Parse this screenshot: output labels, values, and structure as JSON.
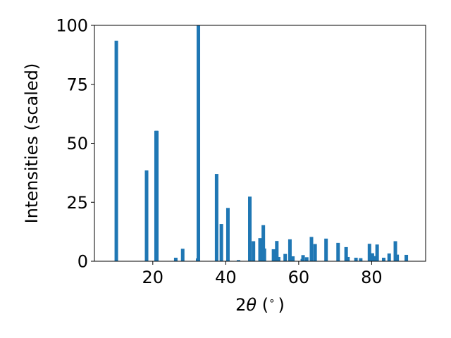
{
  "chart_data": {
    "type": "bar",
    "xlabel": "2θ (°)",
    "xlabel_parts": {
      "base": "2",
      "symbol": "θ",
      "unit": " (",
      "degree": "∘",
      "close": ")"
    },
    "ylabel": "Intensities (scaled)",
    "title": "",
    "xlim": [
      4.0,
      94.8
    ],
    "ylim": [
      0,
      100
    ],
    "xticks": [
      20,
      40,
      60,
      80
    ],
    "yticks": [
      0,
      25,
      50,
      75,
      100
    ],
    "bar_color": "#1f77b4",
    "grid": false,
    "x": [
      10.0,
      18.3,
      20.9,
      21.1,
      26.3,
      28.2,
      32.3,
      32.5,
      37.5,
      38.8,
      40.6,
      43.5,
      46.6,
      47.6,
      49.4,
      50.3,
      50.6,
      53.1,
      54.0,
      54.5,
      56.3,
      57.6,
      58.4,
      61.0,
      61.2,
      62.2,
      63.5,
      64.5,
      67.5,
      70.8,
      73.0,
      73.5,
      75.7,
      77.0,
      79.4,
      80.2,
      81.0,
      81.5,
      83.3,
      84.8,
      86.5,
      87.0,
      89.5
    ],
    "values": [
      93.5,
      38.5,
      55.3,
      55.3,
      1.5,
      5.3,
      1.2,
      100.0,
      37.0,
      15.8,
      22.6,
      0.5,
      27.4,
      8.5,
      9.8,
      15.3,
      5.4,
      5.1,
      8.6,
      1.8,
      3.1,
      9.3,
      2.1,
      1.0,
      2.6,
      1.7,
      10.3,
      7.3,
      9.6,
      7.8,
      6.0,
      1.8,
      1.5,
      1.3,
      7.4,
      3.4,
      2.2,
      7.1,
      1.5,
      3.3,
      8.5,
      2.8,
      2.7
    ]
  }
}
